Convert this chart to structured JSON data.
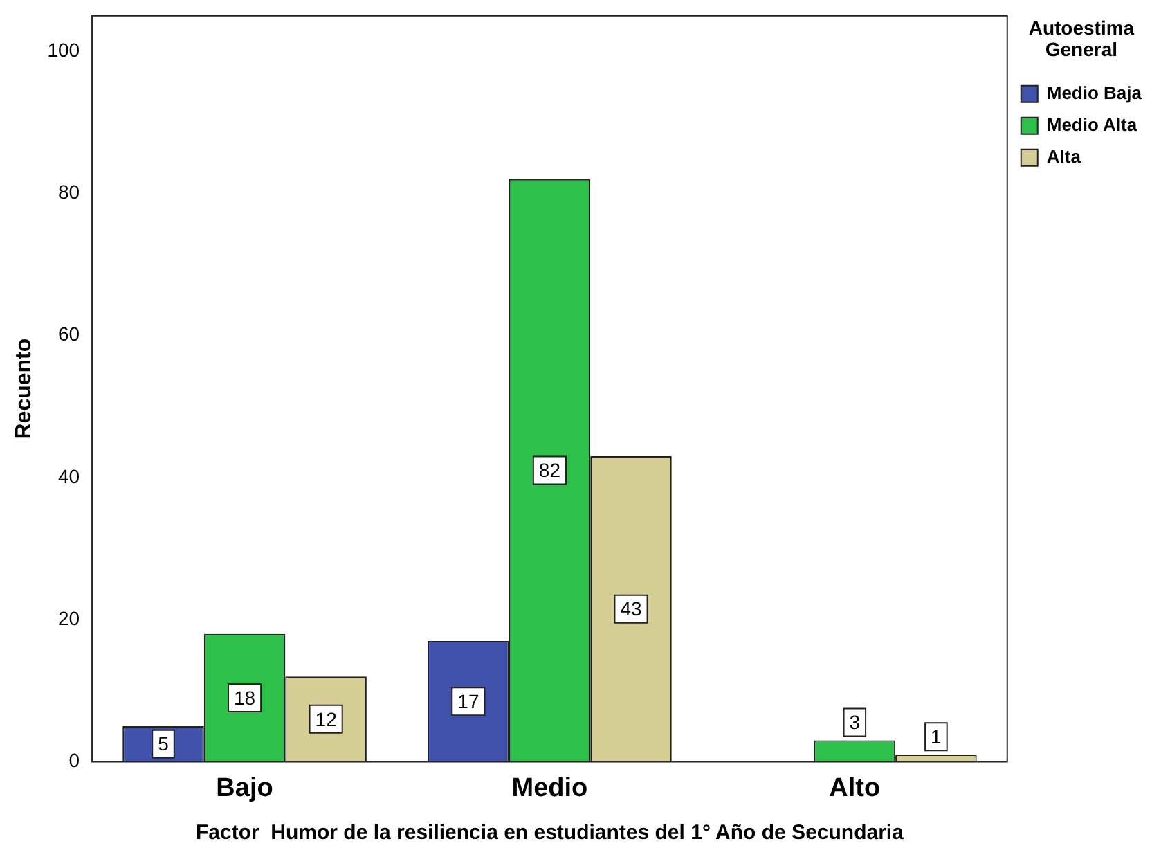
{
  "chart_data": {
    "type": "bar",
    "xlabel": "Factor  Humor de la resiliencia en estudiantes del 1° Año de Secundaria",
    "ylabel": "Recuento",
    "legend_title": "Autoestima General",
    "categories": [
      "Bajo",
      "Medio",
      "Alto"
    ],
    "series": [
      {
        "name": "Medio Baja",
        "color": "#3f51a8",
        "values": [
          5,
          17,
          null
        ]
      },
      {
        "name": "Medio Alta",
        "color": "#2ec04b",
        "values": [
          18,
          82,
          3
        ]
      },
      {
        "name": "Alta",
        "color": "#d5cf96",
        "values": [
          12,
          43,
          1
        ]
      }
    ],
    "ylim": [
      0,
      105
    ],
    "yticks": [
      0,
      20,
      40,
      60,
      80,
      100
    ],
    "grid": false,
    "legend": "top right",
    "data_labels": true
  }
}
